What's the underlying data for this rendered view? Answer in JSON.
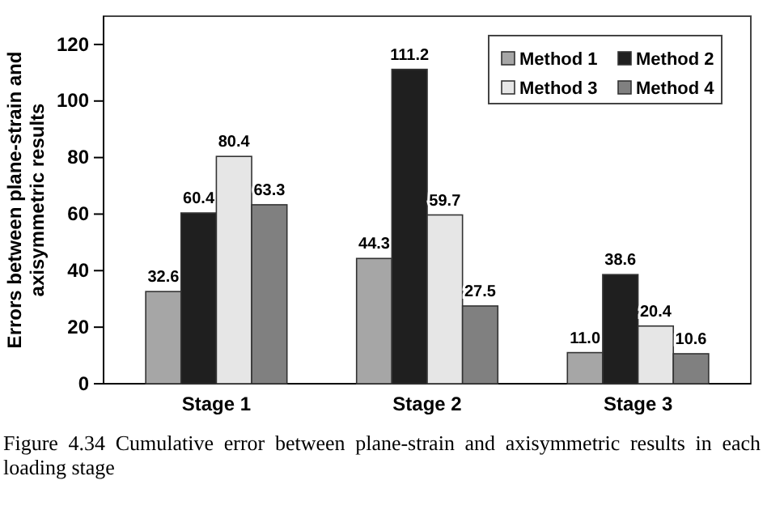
{
  "chart_data": {
    "type": "bar",
    "categories": [
      "Stage 1",
      "Stage 2",
      "Stage 3"
    ],
    "series": [
      {
        "name": "Method 1",
        "color": "#a6a6a6",
        "values": [
          32.6,
          44.3,
          11.0
        ]
      },
      {
        "name": "Method 2",
        "color": "#1f1f1f",
        "values": [
          60.4,
          111.2,
          38.6
        ]
      },
      {
        "name": "Method 3",
        "color": "#e6e6e6",
        "values": [
          80.4,
          59.7,
          20.4
        ]
      },
      {
        "name": "Method 4",
        "color": "#808080",
        "values": [
          63.3,
          27.5,
          10.6
        ]
      }
    ],
    "value_labels": [
      [
        "32.6",
        "44.3",
        "11.0"
      ],
      [
        "60.4",
        "111.2",
        "38.6"
      ],
      [
        "80.4",
        "59.7",
        "20.4"
      ],
      [
        "63.3",
        "27.5",
        "10.6"
      ]
    ],
    "ylabel": "Errors between plane-strain and axisymmetric results",
    "ylim": [
      0,
      130
    ],
    "yticks": [
      0,
      20,
      40,
      60,
      80,
      100,
      120
    ],
    "grid": false,
    "legend": "top right",
    "annotations": [
      "Figure 4.34 Cumulative error between plane-strain and axisymmetric results in each loading stage"
    ]
  }
}
